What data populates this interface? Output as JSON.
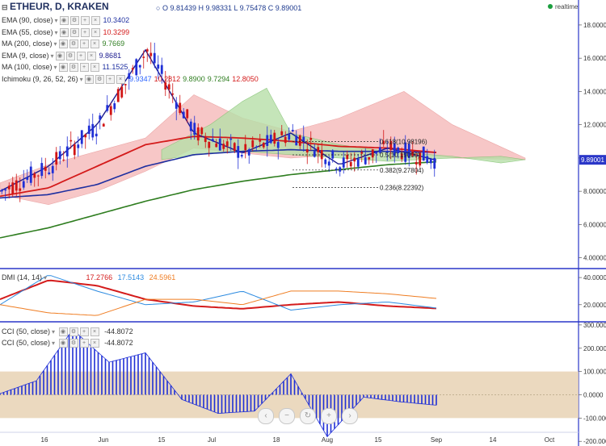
{
  "header": {
    "symbol": "ETHEUR, D, KRAKEN",
    "ohlc": "O 9.81439  H 9.98331  L 9.75478  C 9.89001",
    "realtime": "realtime"
  },
  "indicators": [
    {
      "label": "EMA (90, close)",
      "value": "10.3402",
      "color": "#1e2fa0"
    },
    {
      "label": "EMA (55, close)",
      "value": "10.3299",
      "color": "#d41b1b"
    },
    {
      "label": "MA (200, close)",
      "value": "9.7669",
      "color": "#2e7d1f"
    },
    {
      "label": "EMA (9, close)",
      "value": "9.8681",
      "color": "#1b1b8f"
    },
    {
      "label": "MA (100, close)",
      "value": "11.1525",
      "color": "#1e2fa0"
    }
  ],
  "ichimoku": {
    "label": "Ichimoku (9, 26, 52, 26)",
    "values": [
      "9.9347",
      "10.2812",
      "9.8900",
      "9.7294",
      "12.8050"
    ],
    "colors": [
      "#2962ff",
      "#d41b1b",
      "#2e7d1f",
      "#2e7d1f",
      "#d41b1b"
    ]
  },
  "fib": [
    {
      "label": "0.618(10.98196)",
      "value": 10.98196
    },
    {
      "label": "0.5(10.19000)",
      "value": 10.19
    },
    {
      "label": "0.382(9.27804)",
      "value": 9.27804
    },
    {
      "label": "0.236(8.22392)",
      "value": 8.22392
    }
  ],
  "price_axis": {
    "ticks": [
      "18.00000",
      "16.00000",
      "14.00000",
      "12.00000",
      "10.00000",
      "8.00000",
      "6.00000",
      "4.00000"
    ],
    "values": [
      18,
      16,
      14,
      12,
      10,
      8,
      6,
      4
    ],
    "last": "9.89001"
  },
  "dmi": {
    "label": "DMI (14, 14)",
    "values": [
      "17.2766",
      "17.5143",
      "24.5961"
    ],
    "colors": [
      "#d41b1b",
      "#2b8ae0",
      "#ef7d22"
    ],
    "ticks": [
      "40.0000",
      "20.0000"
    ],
    "tick_values": [
      40,
      20
    ]
  },
  "cci": {
    "labels": [
      "CCI (50, close)",
      "CCI (50, close)"
    ],
    "values": [
      "-44.8072",
      "-44.8072"
    ],
    "ticks": [
      "300.000",
      "200.000",
      "100.000",
      "0.0000",
      "-100.000",
      "-200.000"
    ],
    "tick_values": [
      300,
      200,
      100,
      0,
      -100,
      -200
    ]
  },
  "x_axis": [
    "16",
    "Jun",
    "15",
    "Jul",
    "18",
    "Aug",
    "15",
    "Sep",
    "14",
    "Oct"
  ],
  "colors": {
    "up": "#1f2fd6",
    "down": "#d11414",
    "cloud_red": "#f5b5b5",
    "cloud_green": "#b7dfa8",
    "cci_band": "#e8d2b4",
    "axis_line": "#2a36c8"
  },
  "chart_data": [
    {
      "type": "candlestick",
      "title": "ETHEUR, D, KRAKEN",
      "ylim": [
        3.4,
        19.5
      ],
      "series": [
        {
          "name": "EMA (90, close)",
          "values": [
            7.6,
            7.8,
            8.4,
            9.5,
            10.2,
            10.4,
            10.5,
            10.4,
            10.4,
            10.34
          ]
        },
        {
          "name": "EMA (55, close)",
          "values": [
            7.7,
            8.2,
            9.5,
            10.8,
            11.3,
            11.2,
            11.0,
            10.7,
            10.6,
            10.33
          ]
        },
        {
          "name": "MA (200, close)",
          "values": [
            5.2,
            5.8,
            6.6,
            7.4,
            8.1,
            8.6,
            9.0,
            9.3,
            9.6,
            9.77
          ]
        },
        {
          "name": "EMA (9, close)",
          "values": [
            8.0,
            9.5,
            12.0,
            16.5,
            11.5,
            10.3,
            11.5,
            9.6,
            10.6,
            9.87
          ]
        }
      ],
      "fib_levels": [
        10.98196,
        10.19,
        9.27804,
        8.22392
      ],
      "last": 9.89001
    },
    {
      "type": "line",
      "title": "DMI (14, 14)",
      "ylim": [
        8,
        46
      ],
      "series": [
        {
          "name": "ADX",
          "values": [
            24,
            38,
            34,
            24,
            19,
            17,
            20,
            22,
            19,
            17.28
          ]
        },
        {
          "name": "+DI",
          "values": [
            20,
            42,
            30,
            20,
            22,
            30,
            16,
            20,
            22,
            17.51
          ]
        },
        {
          "name": "-DI",
          "values": [
            20,
            14,
            12,
            24,
            24,
            20,
            30,
            30,
            28,
            24.6
          ]
        }
      ]
    },
    {
      "type": "bar",
      "title": "CCI (50, close)",
      "ylim": [
        -220,
        310
      ],
      "series": [
        {
          "name": "CCI (50, close)",
          "values": [
            5,
            60,
            280,
            140,
            180,
            -20,
            -80,
            -70,
            90,
            -180,
            -10,
            -30,
            -44.8072
          ]
        }
      ]
    }
  ]
}
